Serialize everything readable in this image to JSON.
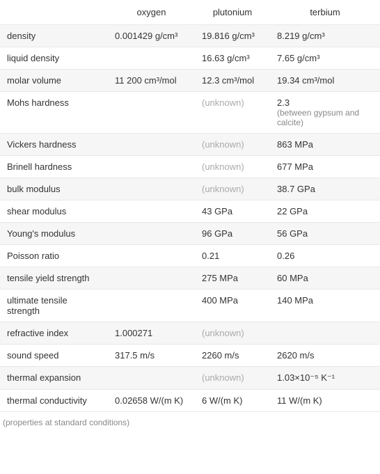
{
  "columns": [
    "oxygen",
    "plutonium",
    "terbium"
  ],
  "rows": [
    {
      "label": "density",
      "oxygen": "0.001429 g/cm³",
      "plutonium": "19.816 g/cm³",
      "terbium": "8.219 g/cm³"
    },
    {
      "label": "liquid density",
      "oxygen": "",
      "plutonium": "16.63 g/cm³",
      "terbium": "7.65 g/cm³"
    },
    {
      "label": "molar volume",
      "oxygen": "11 200 cm³/mol",
      "plutonium": "12.3 cm³/mol",
      "terbium": "19.34 cm³/mol"
    },
    {
      "label": "Mohs hardness",
      "oxygen": "",
      "plutonium": "(unknown)",
      "terbium": "2.3",
      "terbium_note": "(between gypsum and calcite)"
    },
    {
      "label": "Vickers hardness",
      "oxygen": "",
      "plutonium": "(unknown)",
      "terbium": "863 MPa"
    },
    {
      "label": "Brinell hardness",
      "oxygen": "",
      "plutonium": "(unknown)",
      "terbium": "677 MPa"
    },
    {
      "label": "bulk modulus",
      "oxygen": "",
      "plutonium": "(unknown)",
      "terbium": "38.7 GPa"
    },
    {
      "label": "shear modulus",
      "oxygen": "",
      "plutonium": "43 GPa",
      "terbium": "22 GPa"
    },
    {
      "label": "Young's modulus",
      "oxygen": "",
      "plutonium": "96 GPa",
      "terbium": "56 GPa"
    },
    {
      "label": "Poisson ratio",
      "oxygen": "",
      "plutonium": "0.21",
      "terbium": "0.26"
    },
    {
      "label": "tensile yield strength",
      "oxygen": "",
      "plutonium": "275 MPa",
      "terbium": "60 MPa"
    },
    {
      "label": "ultimate tensile strength",
      "oxygen": "",
      "plutonium": "400 MPa",
      "terbium": "140 MPa"
    },
    {
      "label": "refractive index",
      "oxygen": "1.000271",
      "plutonium": "(unknown)",
      "terbium": ""
    },
    {
      "label": "sound speed",
      "oxygen": "317.5 m/s",
      "plutonium": "2260 m/s",
      "terbium": "2620 m/s"
    },
    {
      "label": "thermal expansion",
      "oxygen": "",
      "plutonium": "(unknown)",
      "terbium": "1.03×10⁻⁵ K⁻¹"
    },
    {
      "label": "thermal conductivity",
      "oxygen": "0.02658 W/(m K)",
      "plutonium": "6 W/(m K)",
      "terbium": "11 W/(m K)"
    }
  ],
  "footnote": "(properties at standard conditions)",
  "colors": {
    "background_odd": "#f6f6f6",
    "background_even": "#ffffff",
    "border": "#e8e8e8",
    "text": "#333333",
    "unknown": "#aaaaaa",
    "subnote": "#888888"
  },
  "font_size": 13,
  "subnote_font_size": 12
}
